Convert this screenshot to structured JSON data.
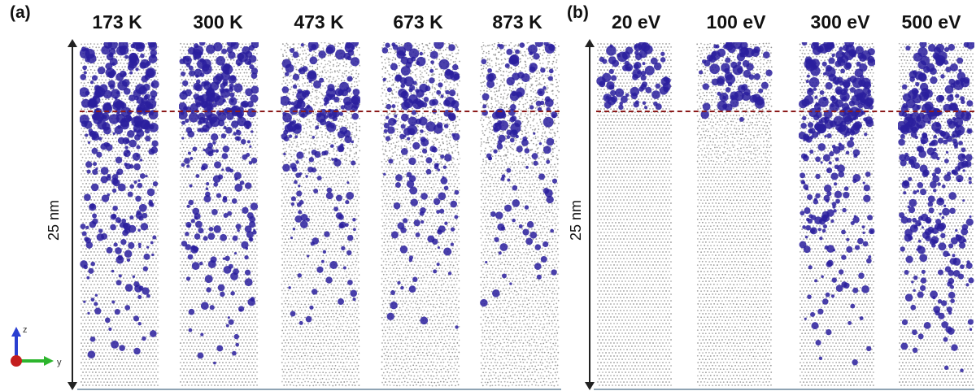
{
  "panel_a": {
    "label": "(a)",
    "scale_label": "25 nm",
    "columns": [
      {
        "title": "173 K",
        "surface": 0.95,
        "band": 0.85,
        "depth": 0.8,
        "tail": 0.55,
        "gray": 0.15
      },
      {
        "title": "300 K",
        "surface": 0.95,
        "band": 1.0,
        "depth": 0.75,
        "tail": 0.55,
        "gray": 0.15
      },
      {
        "title": "473 K",
        "surface": 0.5,
        "band": 0.7,
        "depth": 0.55,
        "tail": 0.3,
        "gray": 0.55
      },
      {
        "title": "673 K",
        "surface": 0.55,
        "band": 0.3,
        "depth": 0.5,
        "tail": 0.25,
        "gray": 0.7
      },
      {
        "title": "873 K",
        "surface": 0.45,
        "band": 0.35,
        "depth": 0.45,
        "tail": 0.15,
        "gray": 0.8
      }
    ]
  },
  "panel_b": {
    "label": "(b)",
    "scale_label": "25 nm",
    "columns": [
      {
        "title": "20 eV",
        "surface": 0.7,
        "band": 0.0,
        "depth": 0.0,
        "tail": 0.0,
        "gray": 0.05
      },
      {
        "title": "100 eV",
        "surface": 0.8,
        "band": 0.05,
        "depth": 0.03,
        "tail": 0.0,
        "gray": 0.3
      },
      {
        "title": "300 eV",
        "surface": 0.9,
        "band": 1.0,
        "depth": 0.85,
        "tail": 0.55,
        "gray": 0.15
      },
      {
        "title": "500 eV",
        "surface": 0.6,
        "band": 0.7,
        "depth": 1.0,
        "tail": 0.85,
        "gray": 0.15
      }
    ]
  },
  "axes_triad": {
    "z_label": "z",
    "y_label": "y"
  },
  "colors": {
    "cluster": "#2a1f9e",
    "atom": "#7a7a7a",
    "ref_line": "#8b1a1a",
    "frame": "#222222"
  }
}
